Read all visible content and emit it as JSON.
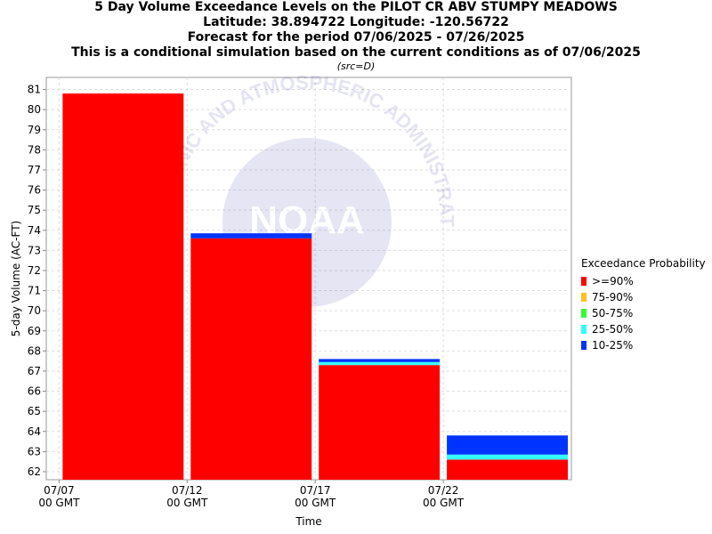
{
  "titles": {
    "line1": "5 Day Volume Exceedance Levels on the PILOT CR ABV STUMPY MEADOWS",
    "line2": "Latitude: 38.894722 Longitude: -120.56722",
    "line3": "Forecast for the period 07/06/2025 - 07/26/2025",
    "line4": "This is a conditional simulation based on the current conditions as of 07/06/2025",
    "src": "(src=D)"
  },
  "legend": {
    "title": "Exceedance Probability",
    "items": [
      {
        "label": ">=90%",
        "color": "#ff0000"
      },
      {
        "label": "75-90%",
        "color": "#ffc020"
      },
      {
        "label": "50-75%",
        "color": "#33ff33"
      },
      {
        "label": "25-50%",
        "color": "#33ffff"
      },
      {
        "label": "10-25%",
        "color": "#0033ff"
      }
    ]
  },
  "watermark": {
    "logo": "NOAA",
    "arc_text": "OCEANIC AND ATMOSPHERIC ADMINISTRATION"
  },
  "chart_data": {
    "type": "bar",
    "stacked": true,
    "xlabel": "Time",
    "ylabel": "5-day Volume (AC-FT)",
    "ylim": [
      61.6,
      81.6
    ],
    "yticks": [
      62,
      63,
      64,
      65,
      66,
      67,
      68,
      69,
      70,
      71,
      72,
      73,
      74,
      75,
      76,
      77,
      78,
      79,
      80,
      81
    ],
    "xticks": [
      {
        "line1": "07/07",
        "line2": "00 GMT",
        "day": 0
      },
      {
        "line1": "07/12",
        "line2": "00 GMT",
        "day": 5
      },
      {
        "line1": "07/17",
        "line2": "00 GMT",
        "day": 10
      },
      {
        "line1": "07/22",
        "line2": "00 GMT",
        "day": 15
      }
    ],
    "x_range_days": [
      -0.5,
      20
    ],
    "grid": true,
    "bars": [
      {
        "period": "07/07 - 07/12",
        "start_day": 0,
        "end_day": 5,
        "levels": {
          ">=90%": 80.8,
          "75-90%": 80.8,
          "50-75%": 80.8,
          "25-50%": 80.8,
          "10-25%": 80.8
        }
      },
      {
        "period": "07/12 - 07/17",
        "start_day": 5,
        "end_day": 10,
        "levels": {
          ">=90%": 73.6,
          "75-90%": 73.6,
          "50-75%": 73.6,
          "25-50%": 73.6,
          "10-25%": 73.85
        }
      },
      {
        "period": "07/17 - 07/22",
        "start_day": 10,
        "end_day": 15,
        "levels": {
          ">=90%": 67.3,
          "75-90%": 67.3,
          "50-75%": 67.3,
          "25-50%": 67.45,
          "10-25%": 67.6
        }
      },
      {
        "period": "07/22 - 07/27",
        "start_day": 15,
        "end_day": 20,
        "levels": {
          ">=90%": 62.6,
          "75-90%": 62.6,
          "50-75%": 62.6,
          "25-50%": 62.85,
          "10-25%": 63.8
        }
      }
    ]
  }
}
